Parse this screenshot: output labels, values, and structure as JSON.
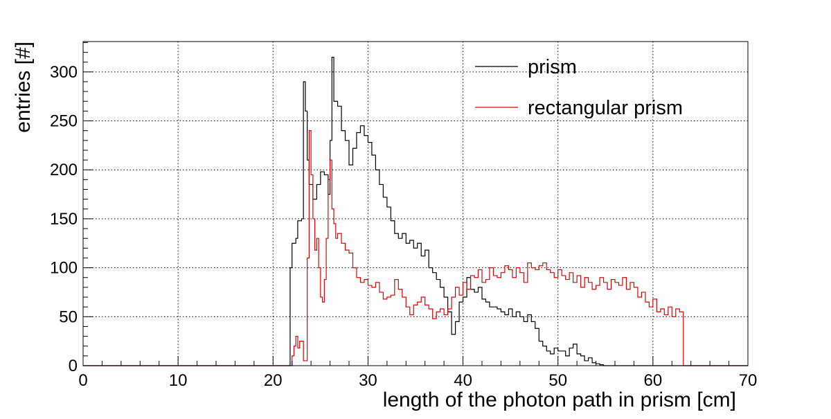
{
  "chart_data": {
    "type": "histogram",
    "xlabel": "length of the photon path in prism [cm]",
    "ylabel": "entries [#]",
    "xlim": [
      0,
      70
    ],
    "ylim": [
      0,
      331
    ],
    "grid": true,
    "grid_style": "dotted",
    "legend_position": "top-right",
    "x_ticks": [
      0,
      10,
      20,
      30,
      40,
      50,
      60,
      70
    ],
    "y_ticks": [
      0,
      50,
      100,
      150,
      200,
      250,
      300
    ],
    "series": [
      {
        "name": "prism",
        "color": "#000000",
        "bin_width": 0.2,
        "points": [
          [
            21.8,
            0
          ],
          [
            21.8,
            100
          ],
          [
            22.0,
            125
          ],
          [
            22.4,
            130
          ],
          [
            22.6,
            148
          ],
          [
            23.0,
            150
          ],
          [
            23.2,
            290
          ],
          [
            23.4,
            260
          ],
          [
            23.6,
            210
          ],
          [
            23.8,
            185
          ],
          [
            24.2,
            170
          ],
          [
            24.6,
            185
          ],
          [
            25.0,
            198
          ],
          [
            25.4,
            195
          ],
          [
            25.8,
            175
          ],
          [
            26.0,
            230
          ],
          [
            26.2,
            315
          ],
          [
            26.4,
            270
          ],
          [
            26.8,
            265
          ],
          [
            27.2,
            240
          ],
          [
            27.6,
            230
          ],
          [
            28.0,
            205
          ],
          [
            28.4,
            222
          ],
          [
            28.8,
            238
          ],
          [
            29.2,
            245
          ],
          [
            29.6,
            235
          ],
          [
            30.0,
            228
          ],
          [
            30.4,
            215
          ],
          [
            30.8,
            200
          ],
          [
            31.2,
            185
          ],
          [
            31.6,
            172
          ],
          [
            32.0,
            162
          ],
          [
            32.4,
            148
          ],
          [
            32.8,
            135
          ],
          [
            33.2,
            130
          ],
          [
            33.6,
            135
          ],
          [
            34.0,
            125
          ],
          [
            34.4,
            128
          ],
          [
            34.8,
            120
          ],
          [
            35.2,
            125
          ],
          [
            35.6,
            112
          ],
          [
            36.0,
            118
          ],
          [
            36.4,
            100
          ],
          [
            36.8,
            95
          ],
          [
            37.2,
            88
          ],
          [
            37.6,
            80
          ],
          [
            38.0,
            70
          ],
          [
            38.4,
            55
          ],
          [
            38.8,
            32
          ],
          [
            39.2,
            45
          ],
          [
            39.6,
            65
          ],
          [
            40.0,
            70
          ],
          [
            40.4,
            90
          ],
          [
            40.8,
            78
          ],
          [
            41.2,
            75
          ],
          [
            41.6,
            80
          ],
          [
            42.0,
            68
          ],
          [
            42.4,
            65
          ],
          [
            42.8,
            60
          ],
          [
            43.2,
            60
          ],
          [
            43.6,
            58
          ],
          [
            44.0,
            55
          ],
          [
            44.4,
            52
          ],
          [
            44.8,
            58
          ],
          [
            45.2,
            50
          ],
          [
            45.6,
            55
          ],
          [
            46.0,
            50
          ],
          [
            46.4,
            45
          ],
          [
            46.8,
            52
          ],
          [
            47.2,
            45
          ],
          [
            47.6,
            38
          ],
          [
            48.0,
            25
          ],
          [
            48.4,
            20
          ],
          [
            48.8,
            15
          ],
          [
            49.2,
            12
          ],
          [
            49.6,
            18
          ],
          [
            50.0,
            15
          ],
          [
            50.4,
            15
          ],
          [
            50.8,
            10
          ],
          [
            51.2,
            18
          ],
          [
            51.6,
            22
          ],
          [
            52.0,
            12
          ],
          [
            52.4,
            10
          ],
          [
            52.8,
            5
          ],
          [
            53.2,
            8
          ],
          [
            53.6,
            3
          ],
          [
            54.0,
            2
          ],
          [
            54.4,
            1
          ],
          [
            54.8,
            0
          ]
        ]
      },
      {
        "name": "rectangular prism",
        "color": "#e00000",
        "bin_width": 0.2,
        "points": [
          [
            21.8,
            0
          ],
          [
            22.0,
            10
          ],
          [
            22.2,
            20
          ],
          [
            22.4,
            30
          ],
          [
            22.6,
            18
          ],
          [
            22.8,
            25
          ],
          [
            23.2,
            5
          ],
          [
            23.6,
            110
          ],
          [
            23.8,
            240
          ],
          [
            24.0,
            195
          ],
          [
            24.2,
            150
          ],
          [
            24.4,
            118
          ],
          [
            24.6,
            130
          ],
          [
            24.8,
            100
          ],
          [
            25.0,
            70
          ],
          [
            25.2,
            65
          ],
          [
            25.4,
            88
          ],
          [
            25.6,
            130
          ],
          [
            25.8,
            190
          ],
          [
            26.0,
            210
          ],
          [
            26.2,
            160
          ],
          [
            26.4,
            145
          ],
          [
            26.6,
            130
          ],
          [
            26.8,
            135
          ],
          [
            27.2,
            125
          ],
          [
            27.6,
            118
          ],
          [
            28.0,
            115
          ],
          [
            28.4,
            100
          ],
          [
            28.8,
            90
          ],
          [
            29.2,
            85
          ],
          [
            29.6,
            88
          ],
          [
            30.0,
            82
          ],
          [
            30.4,
            80
          ],
          [
            30.8,
            85
          ],
          [
            31.2,
            75
          ],
          [
            31.6,
            68
          ],
          [
            32.0,
            70
          ],
          [
            32.4,
            72
          ],
          [
            32.8,
            88
          ],
          [
            33.2,
            78
          ],
          [
            33.6,
            70
          ],
          [
            34.0,
            60
          ],
          [
            34.4,
            52
          ],
          [
            34.8,
            62
          ],
          [
            35.2,
            65
          ],
          [
            35.6,
            70
          ],
          [
            36.0,
            62
          ],
          [
            36.4,
            58
          ],
          [
            36.8,
            48
          ],
          [
            37.2,
            55
          ],
          [
            37.6,
            58
          ],
          [
            38.0,
            52
          ],
          [
            38.4,
            58
          ],
          [
            38.8,
            70
          ],
          [
            39.2,
            80
          ],
          [
            39.6,
            72
          ],
          [
            40.0,
            85
          ],
          [
            40.4,
            78
          ],
          [
            40.8,
            92
          ],
          [
            41.2,
            90
          ],
          [
            41.6,
            98
          ],
          [
            42.0,
            85
          ],
          [
            42.4,
            88
          ],
          [
            42.8,
            100
          ],
          [
            43.2,
            92
          ],
          [
            43.6,
            90
          ],
          [
            44.0,
            95
          ],
          [
            44.4,
            102
          ],
          [
            44.8,
            98
          ],
          [
            45.2,
            90
          ],
          [
            45.6,
            100
          ],
          [
            46.0,
            95
          ],
          [
            46.4,
            85
          ],
          [
            46.8,
            105
          ],
          [
            47.2,
            100
          ],
          [
            47.6,
            98
          ],
          [
            48.0,
            102
          ],
          [
            48.4,
            105
          ],
          [
            48.8,
            98
          ],
          [
            49.2,
            95
          ],
          [
            49.6,
            90
          ],
          [
            50.0,
            98
          ],
          [
            50.4,
            92
          ],
          [
            50.8,
            88
          ],
          [
            51.2,
            95
          ],
          [
            51.6,
            85
          ],
          [
            52.0,
            92
          ],
          [
            52.4,
            80
          ],
          [
            52.8,
            90
          ],
          [
            53.2,
            85
          ],
          [
            53.6,
            78
          ],
          [
            54.0,
            82
          ],
          [
            54.4,
            90
          ],
          [
            54.8,
            85
          ],
          [
            55.2,
            78
          ],
          [
            55.6,
            88
          ],
          [
            56.0,
            85
          ],
          [
            56.4,
            82
          ],
          [
            56.8,
            90
          ],
          [
            57.2,
            78
          ],
          [
            57.6,
            85
          ],
          [
            58.0,
            80
          ],
          [
            58.4,
            70
          ],
          [
            58.8,
            75
          ],
          [
            59.2,
            65
          ],
          [
            59.6,
            60
          ],
          [
            60.0,
            68
          ],
          [
            60.4,
            55
          ],
          [
            60.8,
            58
          ],
          [
            61.2,
            52
          ],
          [
            61.6,
            60
          ],
          [
            62.0,
            50
          ],
          [
            62.4,
            58
          ],
          [
            62.8,
            55
          ],
          [
            63.0,
            55
          ],
          [
            63.2,
            0
          ]
        ]
      }
    ]
  }
}
